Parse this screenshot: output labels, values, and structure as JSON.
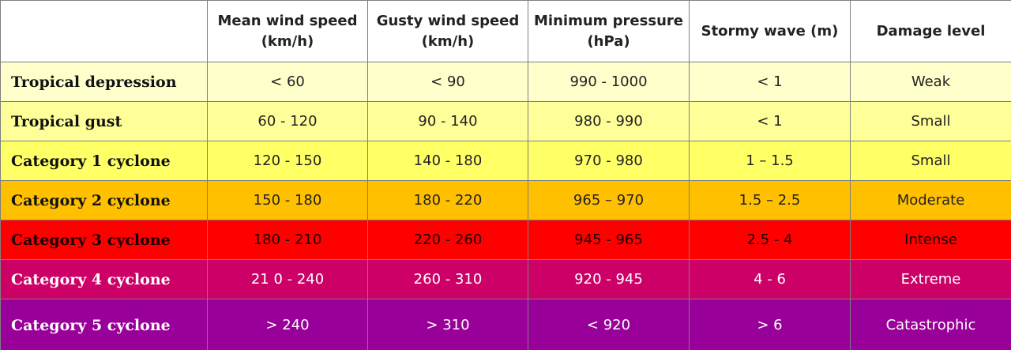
{
  "table": {
    "columns": [
      "",
      "Mean wind speed (km/h)",
      "Gusty wind speed (km/h)",
      "Minimum pressure (hPa)",
      "Stormy wave (m)",
      "Damage level"
    ],
    "rows": [
      {
        "color": "#ffffcc",
        "cells": [
          "Tropical depression",
          "< 60",
          "< 90",
          "990 - 1000",
          "< 1",
          "Weak"
        ]
      },
      {
        "color": "#ffff99",
        "cells": [
          "Tropical gust",
          "60 - 120",
          "90 - 140",
          "980 - 990",
          "< 1",
          "Small"
        ]
      },
      {
        "color": "#ffff66",
        "cells": [
          "Category 1 cyclone",
          "120 - 150",
          "140 - 180",
          "970 - 980",
          "1 – 1.5",
          "Small"
        ]
      },
      {
        "color": "#ffc000",
        "cells": [
          "Category 2 cyclone",
          "150 - 180",
          "180 - 220",
          "965 – 970",
          "1.5 – 2.5",
          "Moderate"
        ]
      },
      {
        "color": "#ff0000",
        "cells": [
          "Category 3 cyclone",
          "180 - 210",
          "220 - 260",
          "945 - 965",
          "2.5 - 4",
          "Intense"
        ]
      },
      {
        "color": "#cc0066",
        "cells": [
          "Category 4 cyclone",
          "21 0 - 240",
          "260 - 310",
          "920 - 945",
          "4 - 6",
          "Extreme"
        ]
      },
      {
        "color": "#990099",
        "cells": [
          "Category 5 cyclone",
          "> 240",
          "> 310",
          "< 920",
          "> 6",
          "Catastrophic"
        ]
      }
    ]
  }
}
